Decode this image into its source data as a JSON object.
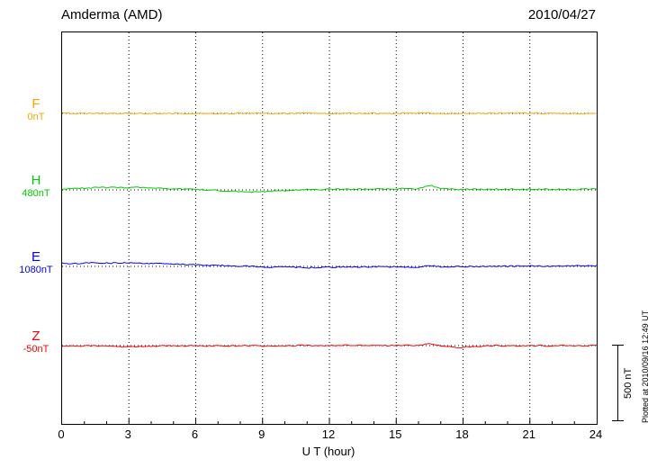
{
  "header": {
    "station": "Amderma (AMD)",
    "date": "2010/04/27"
  },
  "axes": {
    "x_label": "U T (hour)",
    "x_ticks": [
      0,
      3,
      6,
      9,
      12,
      15,
      18,
      21,
      24
    ],
    "x_range": [
      0,
      24
    ]
  },
  "scale_bar": {
    "label": "500 nT",
    "nT": 500
  },
  "footer_note": "Plotted at 2010/09/16 12:49 UT",
  "chart_data": {
    "type": "line",
    "title": "Amderma (AMD)",
    "subtitle": "2010/04/27",
    "xlabel": "U T (hour)",
    "x_range": [
      0,
      24
    ],
    "x_step_hours": 0.5,
    "grid": "dotted",
    "scale_bar_nT": 500,
    "series": [
      {
        "name": "F",
        "color": "#FFA500",
        "baseline_label": "0nT",
        "baseline_nT": 0,
        "values": [
          0,
          0,
          1,
          0,
          0,
          -1,
          0,
          1,
          0,
          0,
          0,
          1,
          0,
          0,
          -1,
          0,
          0,
          1,
          0,
          0,
          0,
          0,
          1,
          0,
          0,
          -1,
          0,
          0,
          1,
          0,
          0,
          1,
          0,
          0,
          -1,
          0,
          0,
          1,
          0,
          0,
          0,
          1,
          0,
          0,
          -1,
          0,
          0,
          0,
          0
        ]
      },
      {
        "name": "H",
        "color": "#00CC00",
        "baseline_label": "480nT",
        "baseline_nT": 480,
        "values": [
          5,
          8,
          12,
          14,
          16,
          17,
          15,
          16,
          13,
          11,
          8,
          5,
          3,
          0,
          -4,
          -8,
          -12,
          -16,
          -13,
          -8,
          -4,
          0,
          3,
          2,
          4,
          5,
          4,
          5,
          7,
          5,
          7,
          8,
          7,
          30,
          10,
          5,
          3,
          5,
          3,
          5,
          3,
          5,
          3,
          5,
          3,
          5,
          3,
          5,
          5
        ]
      },
      {
        "name": "E",
        "color": "#0000FF",
        "baseline_label": "1080nT",
        "baseline_nT": 1080,
        "values": [
          20,
          19,
          21,
          22,
          21,
          22,
          24,
          22,
          20,
          17,
          14,
          12,
          10,
          8,
          6,
          4,
          2,
          0,
          -3,
          -5,
          -4,
          -6,
          -9,
          -7,
          -5,
          -4,
          -3,
          -4,
          -2,
          -4,
          -2,
          -5,
          -3,
          5,
          -3,
          -2,
          0,
          -2,
          0,
          2,
          0,
          2,
          2,
          3,
          2,
          3,
          3,
          4,
          4
        ]
      },
      {
        "name": "Z",
        "color": "#FF0000",
        "baseline_label": "-50nT",
        "baseline_nT": -50,
        "values": [
          0,
          -2,
          0,
          -2,
          -4,
          -6,
          -9,
          -7,
          -4,
          -2,
          0,
          -2,
          0,
          -2,
          0,
          -2,
          -2,
          0,
          -2,
          0,
          -2,
          0,
          0,
          -2,
          0,
          2,
          2,
          0,
          2,
          0,
          0,
          2,
          0,
          14,
          -4,
          -10,
          -12,
          -6,
          -2,
          0,
          0,
          -2,
          0,
          0,
          -2,
          0,
          0,
          -2,
          0
        ]
      }
    ]
  }
}
